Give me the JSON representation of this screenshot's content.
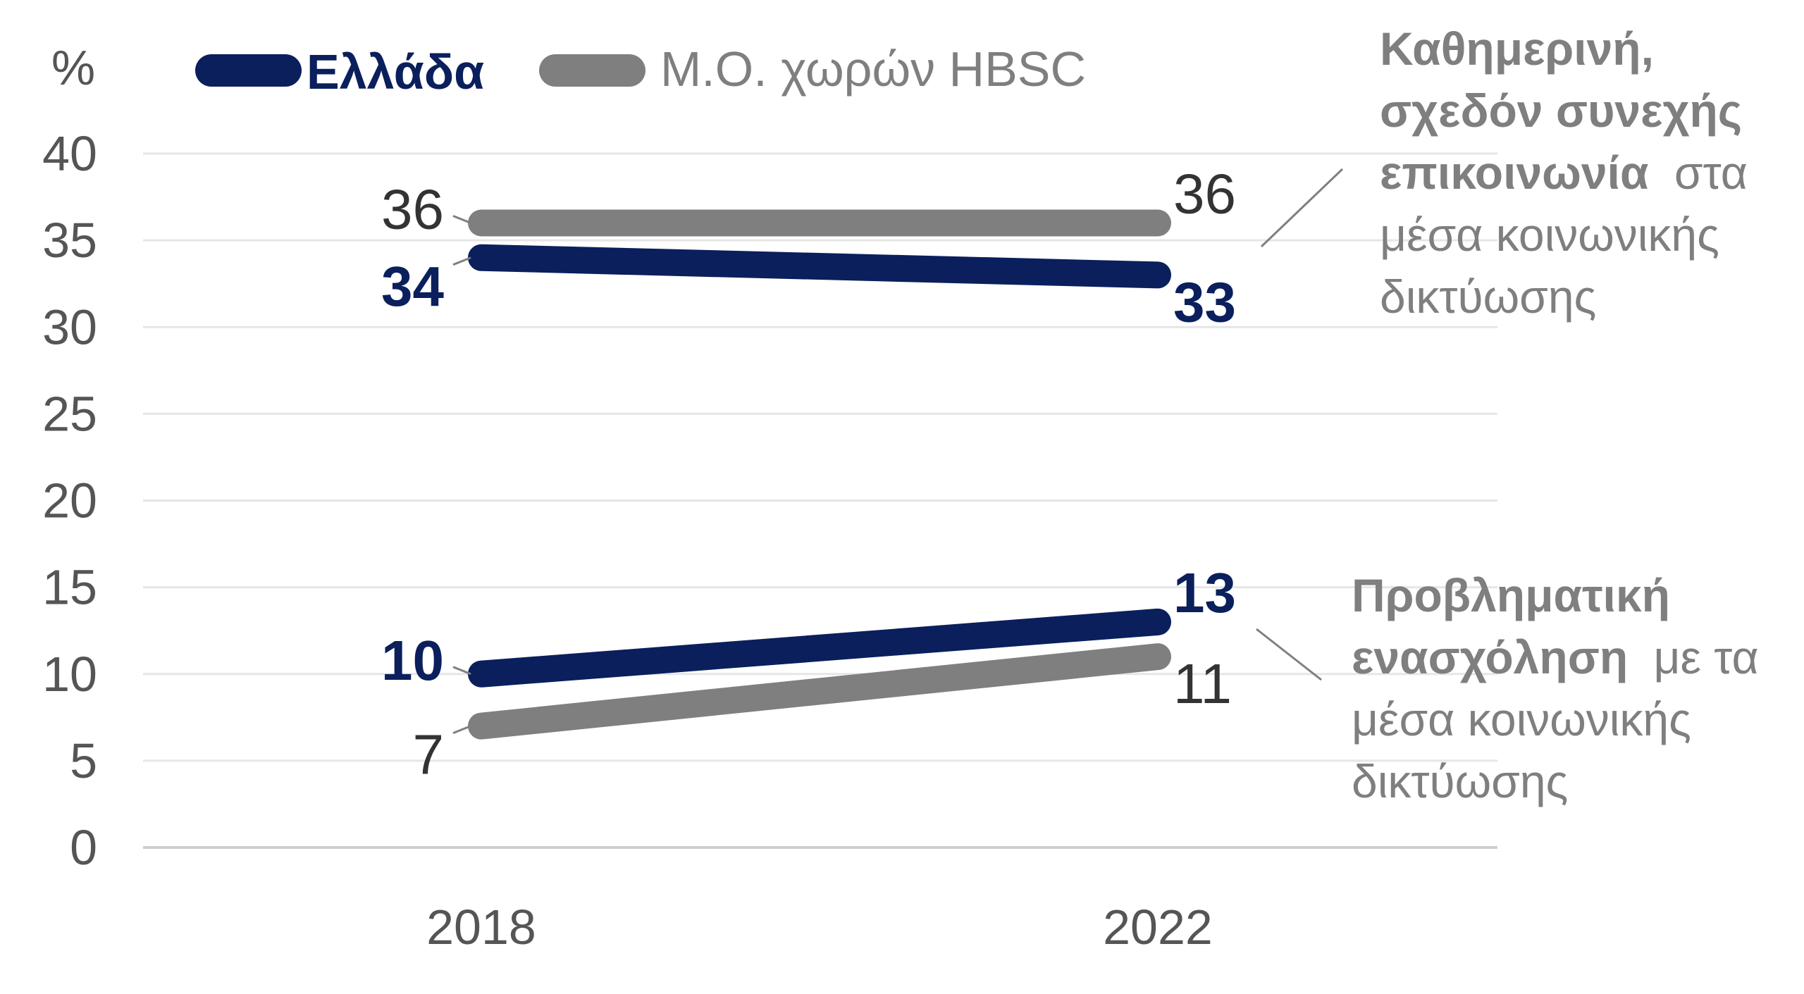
{
  "colors": {
    "greece": "#0a1f5c",
    "hbsc_average": "#7f7f7f"
  },
  "chart_data": {
    "type": "line",
    "ylabel": "%",
    "ylim": [
      0,
      40
    ],
    "yticks": [
      0,
      5,
      10,
      15,
      20,
      25,
      30,
      35,
      40
    ],
    "x": [
      "2018",
      "2022"
    ],
    "grid": true,
    "legend": {
      "placement": "top-left",
      "entries": [
        "Ελλάδα",
        "Μ.Ο. χωρών HBSC"
      ]
    },
    "groups": [
      {
        "annotation_bold": "Καθημερινή, σχεδόν συνεχής επικοινωνία",
        "annotation_rest": "στα μέσα κοινωνικής δικτύωσης",
        "series": [
          {
            "name": "Ελλάδα",
            "values": [
              34,
              33
            ],
            "labels": [
              "34",
              "33"
            ]
          },
          {
            "name": "Μ.Ο. χωρών HBSC",
            "values": [
              36,
              36
            ],
            "labels": [
              "36",
              "36"
            ]
          }
        ]
      },
      {
        "annotation_bold": "Προβληματική ενασχόληση",
        "annotation_rest": "με τα μέσα κοινωνικής δικτύωσης",
        "series": [
          {
            "name": "Ελλάδα",
            "values": [
              10,
              13
            ],
            "labels": [
              "10",
              "13"
            ]
          },
          {
            "name": "Μ.Ο. χωρών HBSC",
            "values": [
              7,
              11
            ],
            "labels": [
              "7",
              "11"
            ]
          }
        ]
      }
    ]
  },
  "annotation_lines": {
    "top": [
      "Καθημερινή,",
      "σχεδόν συνεχής",
      "επικοινωνία",
      "στα",
      "μέσα κοινωνικής",
      "δικτύωσης"
    ],
    "bottom": [
      "Προβληματική",
      "ενασχόληση",
      "με τα",
      "μέσα κοινωνικής",
      "δικτύωσης"
    ]
  }
}
